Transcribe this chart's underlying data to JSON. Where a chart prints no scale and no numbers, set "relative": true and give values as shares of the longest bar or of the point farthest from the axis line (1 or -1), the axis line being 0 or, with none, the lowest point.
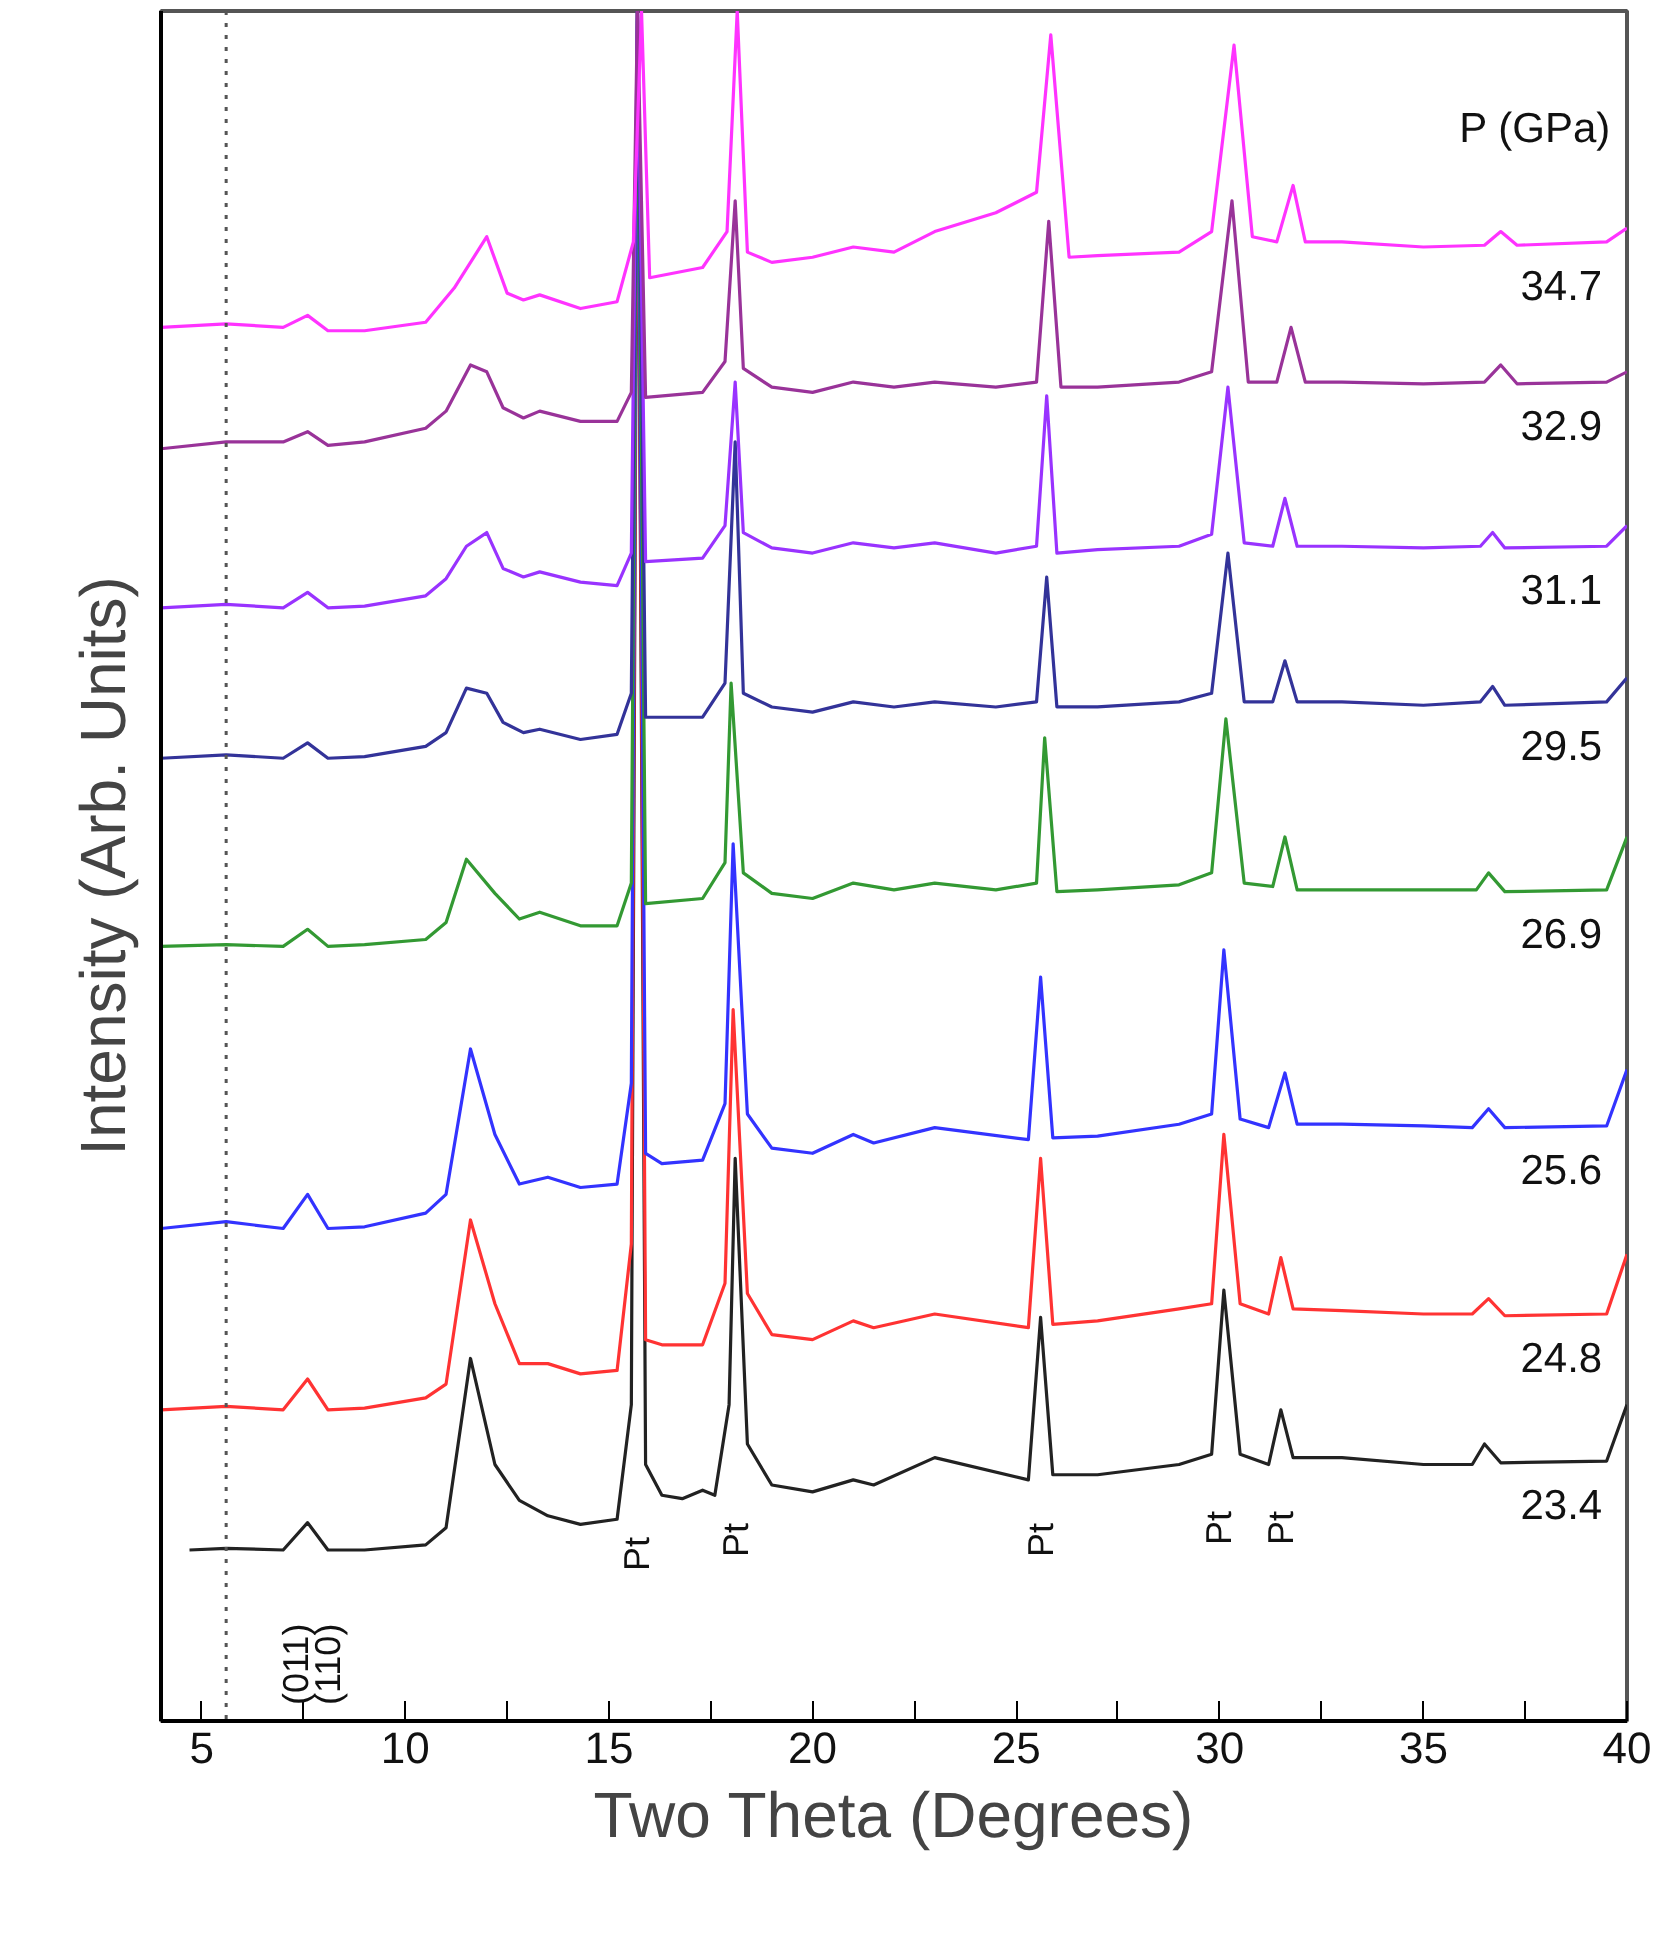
{
  "chart_data": {
    "type": "line",
    "relative": true,
    "xlabel": "Two Theta (Degrees)",
    "ylabel": "Intensity (Arb. Units)",
    "legend_title": "P (GPa)",
    "grid": false,
    "line_style": "solid",
    "marker": "none",
    "xlim": [
      4,
      40
    ],
    "xticks": [
      5,
      {
        "value": 7.5,
        "label": null
      },
      10,
      {
        "value": 12.5,
        "label": null
      },
      15,
      {
        "value": 17.5,
        "label": null
      },
      20,
      {
        "value": 22.5,
        "label": null
      },
      25,
      {
        "value": 27.5,
        "label": null
      },
      30,
      {
        "value": 32.5,
        "label": null
      },
      35,
      {
        "value": 37.5,
        "label": null
      },
      40
    ],
    "ref_lines": [
      {
        "axis": "x",
        "value": 5.6,
        "line_style": "dotted",
        "color": "#555555"
      }
    ],
    "annotations": [
      "(011)",
      "(110)",
      "Pt",
      "Pt",
      "Pt",
      "Pt",
      "Pt"
    ],
    "series": [
      {
        "name": "23.4",
        "color": "#222222",
        "x": [
          4.7,
          5.6,
          7.0,
          7.6,
          8.1,
          9,
          10.5,
          11.0,
          11.6,
          12.2,
          12.8,
          13.5,
          14.3,
          15.2,
          15.55,
          15.7,
          15.9,
          16.3,
          16.8,
          17.3,
          17.6,
          17.95,
          18.1,
          18.4,
          19,
          20,
          21,
          21.5,
          23,
          25.3,
          25.6,
          25.9,
          27,
          29,
          29.8,
          30.1,
          30.5,
          31.2,
          31.5,
          31.8,
          33,
          35,
          36.2,
          36.5,
          36.9,
          39.5,
          40
        ],
        "values": [
          0.1,
          0.101,
          0.1,
          0.116,
          0.1,
          0.1,
          0.103,
          0.113,
          0.212,
          0.15,
          0.129,
          0.12,
          0.115,
          0.118,
          0.185,
          1,
          0.15,
          0.132,
          0.13,
          0.135,
          0.132,
          0.185,
          0.329,
          0.162,
          0.138,
          0.134,
          0.141,
          0.138,
          0.154,
          0.141,
          0.236,
          0.144,
          0.144,
          0.15,
          0.156,
          0.252,
          0.156,
          0.15,
          0.182,
          0.154,
          0.154,
          0.15,
          0.15,
          0.162,
          0.151,
          0.152,
          0.185
        ]
      },
      {
        "name": "24.8",
        "color": "#ff3333",
        "x": [
          4.0,
          5.6,
          7.0,
          7.6,
          8.1,
          9,
          10.5,
          11.0,
          11.6,
          12.2,
          12.8,
          13.5,
          14.3,
          15.2,
          15.55,
          15.7,
          15.9,
          16.3,
          17.3,
          17.85,
          18.05,
          18.4,
          19,
          20,
          21,
          21.5,
          23,
          25.3,
          25.6,
          25.9,
          27,
          29,
          29.8,
          30.1,
          30.5,
          31.2,
          31.5,
          31.8,
          33,
          35,
          36.2,
          36.6,
          37,
          39.5,
          40
        ],
        "values": [
          0.182,
          0.184,
          0.182,
          0.2,
          0.182,
          0.183,
          0.189,
          0.197,
          0.293,
          0.244,
          0.209,
          0.209,
          0.203,
          0.205,
          0.279,
          1,
          0.223,
          0.22,
          0.22,
          0.256,
          0.416,
          0.25,
          0.226,
          0.223,
          0.234,
          0.23,
          0.238,
          0.23,
          0.329,
          0.232,
          0.234,
          0.241,
          0.244,
          0.343,
          0.244,
          0.238,
          0.271,
          0.241,
          0.24,
          0.238,
          0.238,
          0.247,
          0.237,
          0.238,
          0.273
        ]
      },
      {
        "name": "25.6",
        "color": "#3333ff",
        "x": [
          4.0,
          5.6,
          7.0,
          7.6,
          8.1,
          9,
          10.5,
          11.0,
          11.6,
          12.2,
          12.8,
          13.5,
          14.3,
          15.2,
          15.55,
          15.7,
          15.9,
          16.3,
          17.3,
          17.85,
          18.05,
          18.4,
          19,
          20,
          21,
          21.5,
          23,
          25.3,
          25.6,
          25.9,
          27,
          29,
          29.8,
          30.1,
          30.5,
          31.2,
          31.6,
          31.9,
          33,
          35,
          36.2,
          36.6,
          37,
          39.5,
          40
        ],
        "values": [
          0.288,
          0.292,
          0.288,
          0.308,
          0.288,
          0.289,
          0.297,
          0.308,
          0.393,
          0.343,
          0.314,
          0.318,
          0.312,
          0.314,
          0.373,
          1,
          0.332,
          0.326,
          0.328,
          0.361,
          0.513,
          0.355,
          0.335,
          0.332,
          0.343,
          0.338,
          0.347,
          0.34,
          0.435,
          0.341,
          0.342,
          0.349,
          0.355,
          0.451,
          0.352,
          0.347,
          0.379,
          0.349,
          0.349,
          0.348,
          0.347,
          0.358,
          0.347,
          0.348,
          0.381
        ]
      },
      {
        "name": "26.9",
        "color": "#339933",
        "x": [
          4.0,
          5.6,
          7.0,
          7.6,
          8.1,
          9,
          10.5,
          11.0,
          11.5,
          12.2,
          12.8,
          13.3,
          14.3,
          15.2,
          15.55,
          15.7,
          15.9,
          17.3,
          17.85,
          18.0,
          18.3,
          19,
          20,
          21,
          22,
          23,
          24.5,
          25.5,
          25.7,
          26.0,
          27,
          29,
          29.8,
          30.15,
          30.6,
          31.3,
          31.6,
          31.9,
          33,
          35,
          36.3,
          36.6,
          37,
          39.5,
          40
        ],
        "values": [
          0.453,
          0.454,
          0.453,
          0.463,
          0.453,
          0.454,
          0.457,
          0.467,
          0.504,
          0.484,
          0.469,
          0.473,
          0.465,
          0.465,
          0.49,
          1,
          0.478,
          0.481,
          0.502,
          0.607,
          0.496,
          0.484,
          0.481,
          0.49,
          0.486,
          0.49,
          0.486,
          0.49,
          0.575,
          0.485,
          0.486,
          0.489,
          0.496,
          0.586,
          0.49,
          0.488,
          0.517,
          0.486,
          0.486,
          0.486,
          0.486,
          0.496,
          0.485,
          0.486,
          0.517
        ]
      },
      {
        "name": "29.5",
        "color": "#333399",
        "x": [
          4.0,
          5.6,
          7.0,
          7.6,
          8.1,
          9,
          10.5,
          11.0,
          11.5,
          12.0,
          12.4,
          12.9,
          13.3,
          14.3,
          15.2,
          15.55,
          15.7,
          15.9,
          17.3,
          17.85,
          18.1,
          18.3,
          19,
          20,
          21,
          22,
          23,
          24.5,
          25.5,
          25.75,
          26.0,
          27,
          29,
          29.8,
          30.2,
          30.6,
          31.3,
          31.6,
          31.9,
          33,
          35,
          36.4,
          36.7,
          37,
          39.5,
          40
        ],
        "values": [
          0.563,
          0.565,
          0.563,
          0.572,
          0.563,
          0.564,
          0.57,
          0.578,
          0.604,
          0.601,
          0.584,
          0.578,
          0.58,
          0.574,
          0.577,
          0.601,
          1,
          0.587,
          0.587,
          0.607,
          0.748,
          0.601,
          0.593,
          0.59,
          0.596,
          0.593,
          0.596,
          0.593,
          0.596,
          0.669,
          0.593,
          0.593,
          0.596,
          0.601,
          0.683,
          0.596,
          0.596,
          0.62,
          0.596,
          0.596,
          0.594,
          0.596,
          0.605,
          0.594,
          0.596,
          0.61
        ]
      },
      {
        "name": "31.1",
        "color": "#9933ff",
        "x": [
          4.0,
          5.6,
          7.0,
          7.6,
          8.1,
          9,
          10.5,
          11.0,
          11.5,
          12.0,
          12.4,
          12.9,
          13.3,
          14.3,
          15.2,
          15.55,
          15.7,
          15.9,
          17.3,
          17.85,
          18.1,
          18.3,
          19,
          20,
          21,
          22,
          23,
          24.5,
          25.5,
          25.75,
          26.0,
          27,
          29,
          29.8,
          30.2,
          30.6,
          31.3,
          31.6,
          31.9,
          33,
          35,
          36.4,
          36.7,
          37,
          39.5,
          40
        ],
        "values": [
          0.651,
          0.653,
          0.651,
          0.66,
          0.651,
          0.652,
          0.658,
          0.668,
          0.687,
          0.695,
          0.674,
          0.669,
          0.672,
          0.666,
          0.664,
          0.683,
          1,
          0.678,
          0.68,
          0.699,
          0.783,
          0.695,
          0.686,
          0.683,
          0.689,
          0.686,
          0.689,
          0.683,
          0.687,
          0.775,
          0.683,
          0.685,
          0.687,
          0.694,
          0.78,
          0.689,
          0.687,
          0.715,
          0.687,
          0.687,
          0.686,
          0.687,
          0.695,
          0.686,
          0.687,
          0.699
        ]
      },
      {
        "name": "32.9",
        "color": "#993399",
        "x": [
          4.0,
          5.6,
          7.0,
          7.6,
          8.1,
          9,
          10.5,
          11.0,
          11.6,
          12.0,
          12.4,
          12.9,
          13.3,
          14.3,
          15.2,
          15.55,
          15.7,
          15.9,
          17.3,
          17.85,
          18.1,
          18.3,
          19,
          20,
          21,
          22,
          23,
          24.5,
          25.5,
          25.8,
          26.1,
          27,
          29,
          29.8,
          30.3,
          30.7,
          31.4,
          31.75,
          32.1,
          33,
          35,
          36.5,
          36.9,
          37.3,
          39.5,
          40
        ],
        "values": [
          0.744,
          0.748,
          0.748,
          0.754,
          0.746,
          0.748,
          0.756,
          0.766,
          0.793,
          0.789,
          0.768,
          0.762,
          0.766,
          0.76,
          0.76,
          0.777,
          1,
          0.774,
          0.777,
          0.795,
          0.889,
          0.791,
          0.78,
          0.777,
          0.783,
          0.78,
          0.783,
          0.78,
          0.783,
          0.877,
          0.78,
          0.78,
          0.783,
          0.789,
          0.889,
          0.783,
          0.783,
          0.815,
          0.783,
          0.783,
          0.782,
          0.783,
          0.793,
          0.782,
          0.783,
          0.789
        ]
      },
      {
        "name": "34.7",
        "color": "#ff33ff",
        "x": [
          4.0,
          5.6,
          7.0,
          7.6,
          8.1,
          9,
          10.5,
          11.2,
          12.0,
          12.5,
          12.9,
          13.3,
          14.3,
          15.2,
          15.6,
          15.8,
          16.0,
          17.3,
          17.9,
          18.15,
          18.4,
          19,
          20,
          21,
          22,
          23,
          24.5,
          25.5,
          25.85,
          26.3,
          27,
          29,
          29.8,
          30.35,
          30.8,
          31.4,
          31.8,
          32.1,
          33,
          35,
          36.5,
          36.9,
          37.3,
          39.5,
          40
        ],
        "values": [
          0.815,
          0.817,
          0.815,
          0.822,
          0.813,
          0.813,
          0.818,
          0.838,
          0.868,
          0.835,
          0.831,
          0.834,
          0.826,
          0.83,
          0.865,
          1,
          0.844,
          0.85,
          0.871,
          1,
          0.859,
          0.853,
          0.856,
          0.862,
          0.859,
          0.871,
          0.882,
          0.894,
          0.986,
          0.856,
          0.857,
          0.859,
          0.871,
          0.98,
          0.868,
          0.865,
          0.898,
          0.865,
          0.865,
          0.862,
          0.863,
          0.871,
          0.863,
          0.865,
          0.873
        ]
      }
    ]
  }
}
